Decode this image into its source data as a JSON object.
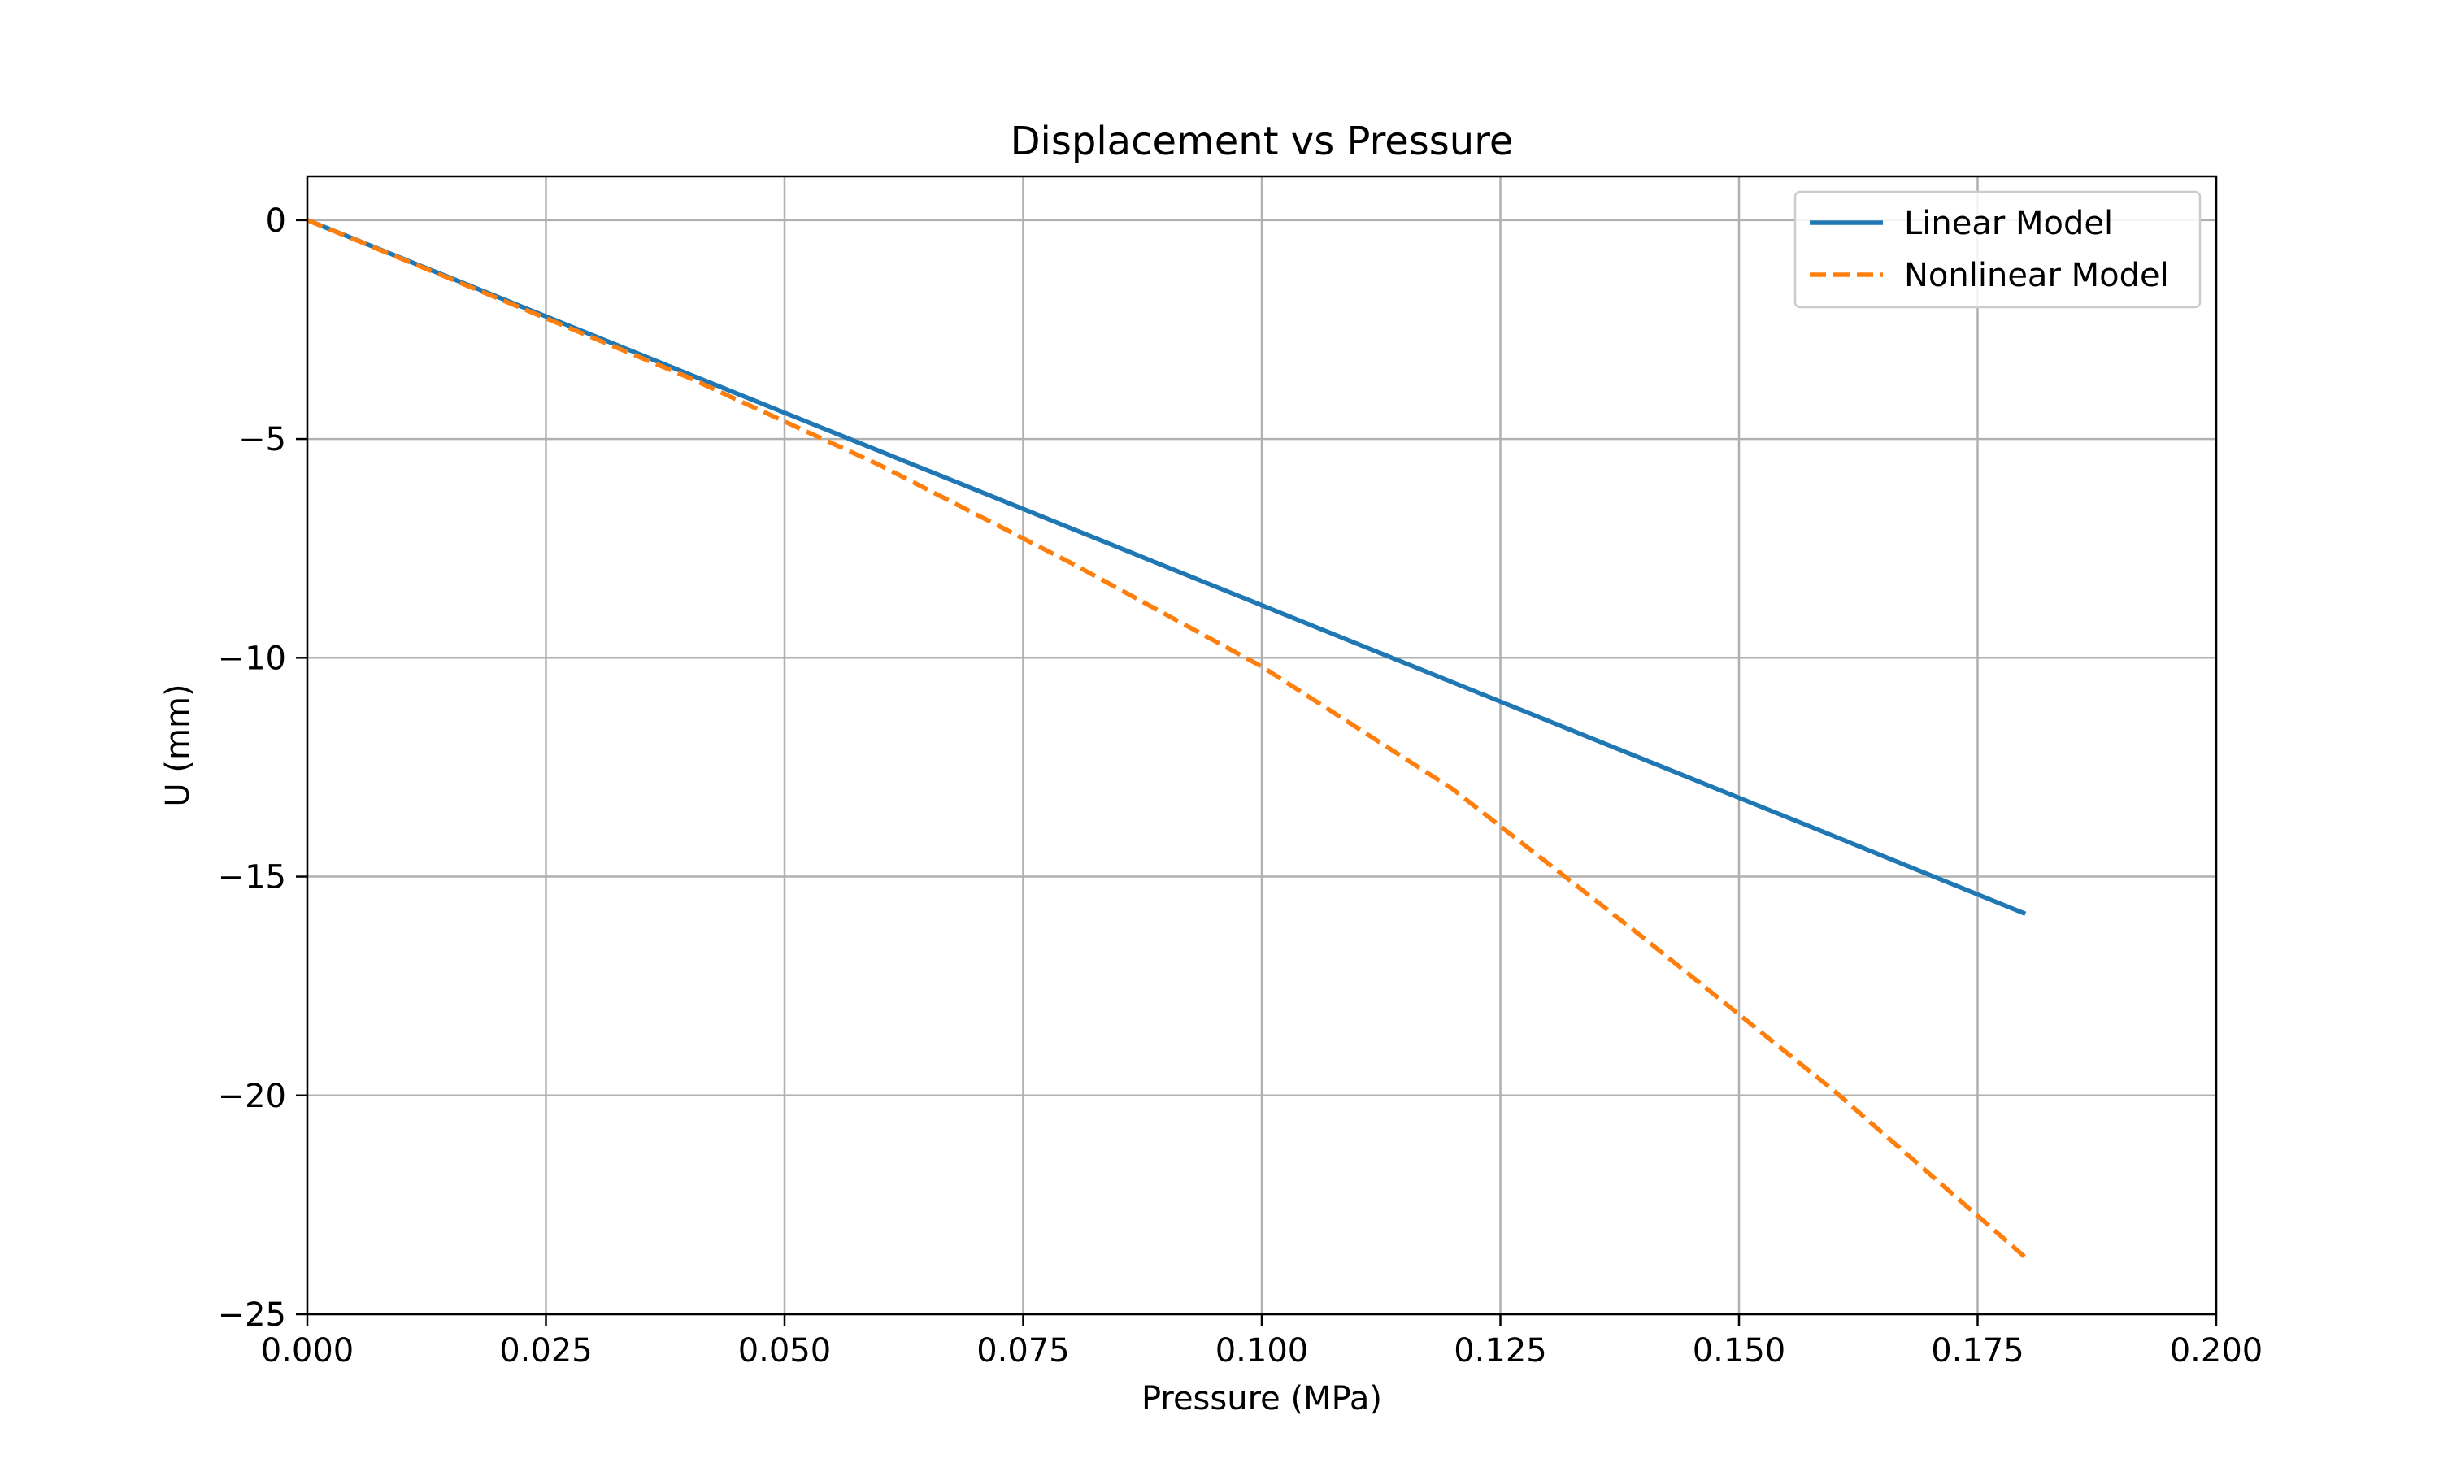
{
  "chart_data": {
    "type": "line",
    "title": "Displacement vs Pressure",
    "xlabel": "Pressure (MPa)",
    "ylabel": "U (mm)",
    "xlim": [
      0,
      0.2
    ],
    "ylim": [
      -25,
      1
    ],
    "xticks": [
      0,
      0.025,
      0.05,
      0.075,
      0.1,
      0.125,
      0.15,
      0.175,
      0.2
    ],
    "xtick_labels": [
      "0.000",
      "0.025",
      "0.050",
      "0.075",
      "0.100",
      "0.125",
      "0.150",
      "0.175",
      "0.200"
    ],
    "yticks": [
      0,
      -5,
      -10,
      -15,
      -20,
      -25
    ],
    "ytick_labels": [
      "0",
      "−5",
      "−10",
      "−15",
      "−20",
      "−25"
    ],
    "grid": true,
    "legend_position": "top-right",
    "series": [
      {
        "name": "Linear Model",
        "color": "#1f77b4",
        "style": "solid",
        "x": [
          0,
          0.02,
          0.04,
          0.06,
          0.08,
          0.1,
          0.12,
          0.14,
          0.16,
          0.18
        ],
        "y": [
          0,
          -1.76,
          -3.52,
          -5.28,
          -7.04,
          -8.8,
          -10.56,
          -12.32,
          -14.08,
          -15.85
        ]
      },
      {
        "name": "Nonlinear Model",
        "color": "#ff7f0e",
        "style": "dashed",
        "x": [
          0,
          0.02,
          0.04,
          0.06,
          0.08,
          0.1,
          0.12,
          0.14,
          0.16,
          0.18
        ],
        "y": [
          0,
          -1.79,
          -3.6,
          -5.6,
          -7.83,
          -10.2,
          -13.0,
          -16.4,
          -19.9,
          -23.7
        ]
      }
    ]
  }
}
